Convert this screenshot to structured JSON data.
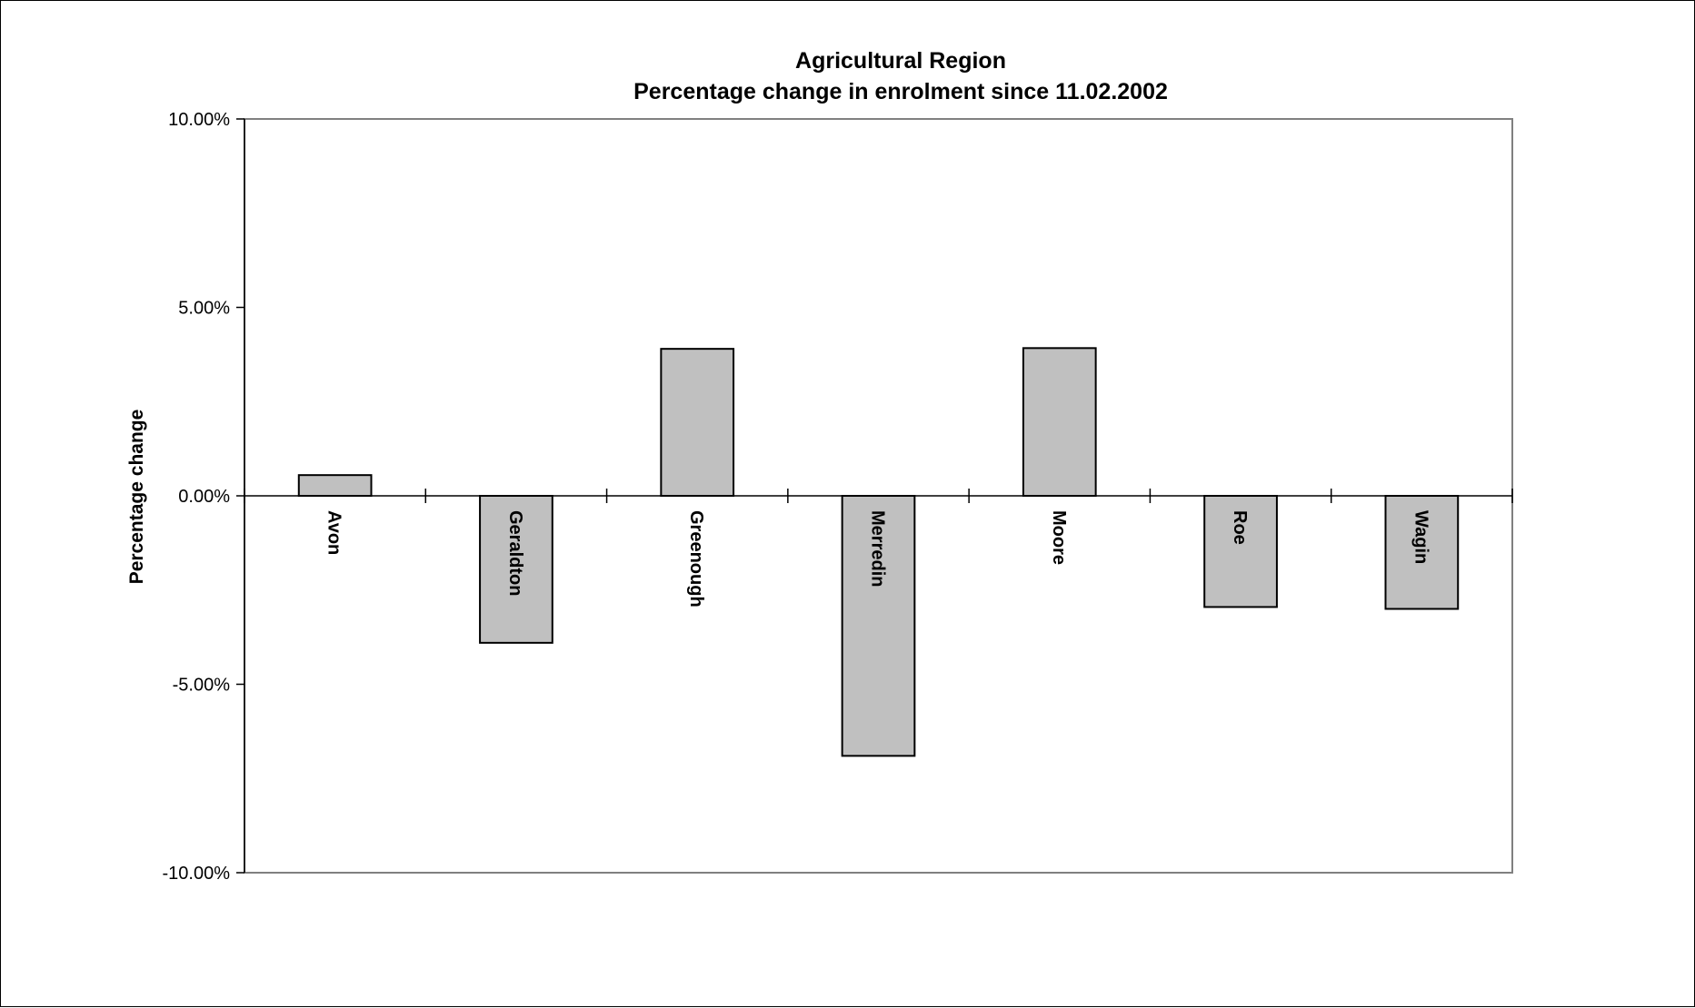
{
  "chart_data": {
    "type": "bar",
    "title": "Agricultural Region",
    "subtitle": "Percentage change in enrolment since 11.02.2002",
    "xlabel": "",
    "ylabel": "Percentage change",
    "categories": [
      "Avon",
      "Geraldton",
      "Greenough",
      "Merredin",
      "Moore",
      "Roe",
      "Wagin"
    ],
    "values": [
      0.55,
      -3.9,
      3.9,
      -6.9,
      3.92,
      -2.95,
      -3.0
    ],
    "ylim": [
      -10,
      10
    ],
    "yticks": [
      10,
      5,
      0,
      -5,
      -10
    ],
    "ytick_labels": [
      "10.00%",
      "5.00%",
      "0.00%",
      "-5.00%",
      "-10.00%"
    ],
    "grid": false,
    "legend": "none",
    "colors": {
      "bar_fill": "#c0c0c0",
      "bar_edge": "#000000",
      "plot_border": "#808080"
    }
  }
}
